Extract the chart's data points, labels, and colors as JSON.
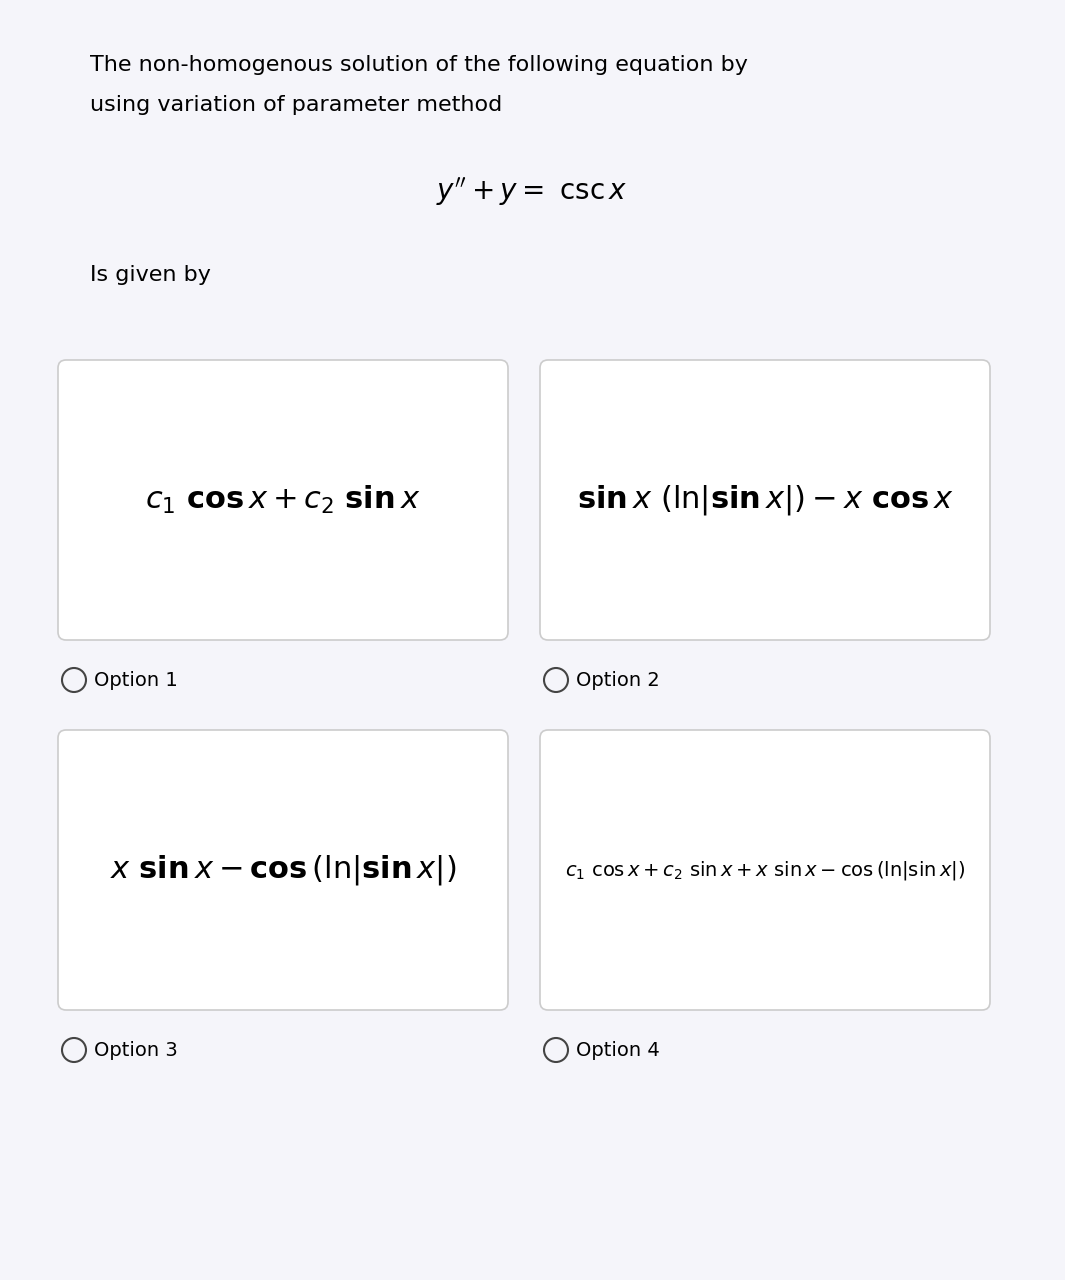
{
  "bg_color": "#f5f5fa",
  "card_bg": "#ffffff",
  "card_border": "#cccccc",
  "text_color": "#000000",
  "title_line1": "The non-homogenous solution of the following equation by",
  "title_line2": "using variation of parameter method",
  "is_given_by": "Is given by",
  "option1_label": "Option 1",
  "option2_label": "Option 2",
  "option3_label": "Option 3",
  "option4_label": "Option 4",
  "title_fontsize": 16,
  "equation_fontsize": 20,
  "option1_fontsize": 22,
  "option2_fontsize": 22,
  "option3_fontsize": 22,
  "option4_fontsize": 14,
  "label_fontsize": 14,
  "given_by_fontsize": 16,
  "fig_width": 10.65,
  "fig_height": 12.8,
  "dpi": 100
}
